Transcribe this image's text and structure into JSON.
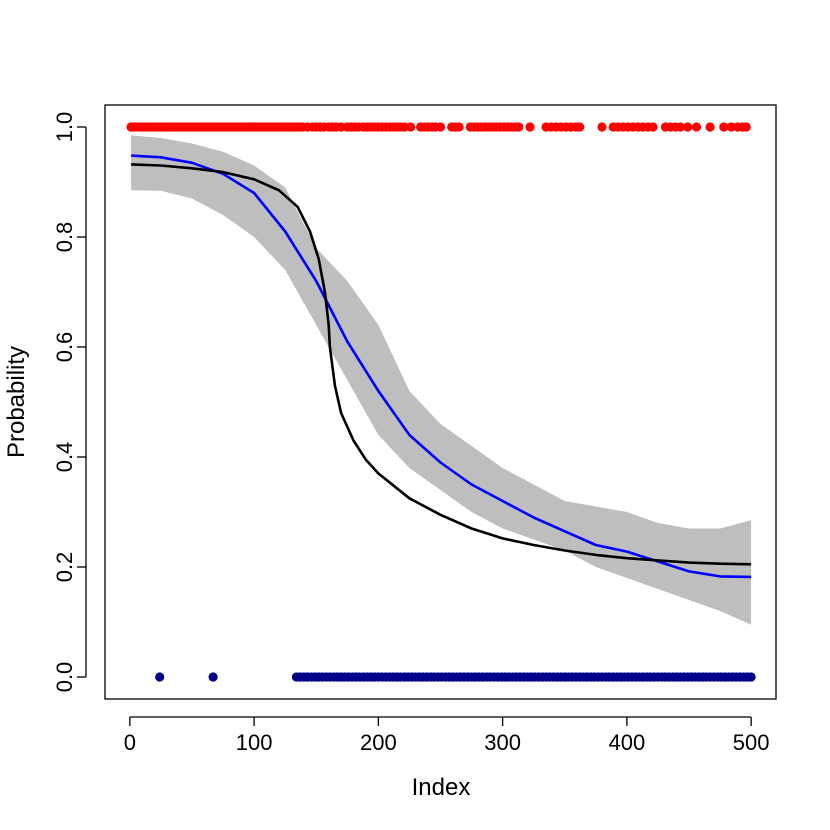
{
  "chart_data": {
    "type": "scatter",
    "title": "",
    "xlabel": "Index",
    "ylabel": "Probability",
    "xlim": [
      -20,
      520
    ],
    "ylim": [
      -0.04,
      1.04
    ],
    "x_ticks": [
      0,
      100,
      200,
      300,
      400,
      500
    ],
    "x_tick_labels": [
      "0",
      "100",
      "200",
      "300",
      "400",
      "500"
    ],
    "y_ticks": [
      0.0,
      0.2,
      0.4,
      0.6,
      0.8,
      1.0
    ],
    "y_tick_labels": [
      "0.0",
      "0.2",
      "0.4",
      "0.6",
      "0.8",
      "1.0"
    ],
    "grid": false,
    "legend": "none",
    "colors": {
      "ones": "#ff0000",
      "zeros": "#00008b",
      "band": "#bebebe",
      "smooth": "#0000ff",
      "logistic": "#000000",
      "axis": "#000000"
    },
    "series": [
      {
        "name": "observed y = 1",
        "kind": "points",
        "color": "#ff0000",
        "y": 1,
        "x": [
          1,
          3,
          5,
          7,
          9,
          11,
          13,
          15,
          17,
          19,
          21,
          23,
          25,
          27,
          29,
          31,
          33,
          35,
          37,
          39,
          41,
          43,
          45,
          47,
          49,
          51,
          53,
          55,
          57,
          59,
          61,
          63,
          65,
          67,
          69,
          71,
          73,
          75,
          77,
          79,
          81,
          83,
          85,
          87,
          89,
          91,
          93,
          95,
          97,
          99,
          101,
          103,
          105,
          107,
          109,
          111,
          113,
          115,
          117,
          119,
          121,
          123,
          125,
          127,
          129,
          131,
          133,
          135,
          137,
          139,
          143,
          147,
          150,
          153,
          156,
          160,
          163,
          166,
          170,
          175,
          178,
          181,
          184,
          188,
          191,
          194,
          197,
          200,
          203,
          206,
          209,
          212,
          215,
          218,
          221,
          226,
          234,
          237,
          240,
          243,
          246,
          250,
          259,
          262,
          265,
          274,
          277,
          280,
          283,
          286,
          289,
          292,
          295,
          298,
          301,
          304,
          307,
          310,
          313,
          322,
          335,
          339,
          343,
          347,
          351,
          355,
          359,
          362,
          380,
          389,
          393,
          397,
          401,
          405,
          409,
          413,
          417,
          421,
          431,
          435,
          439,
          443,
          449,
          456,
          467,
          478,
          484,
          489,
          493,
          496
        ]
      },
      {
        "name": "observed y = 0",
        "kind": "points",
        "color": "#00008b",
        "y": 0,
        "x": [
          24,
          67,
          134,
          137,
          140,
          143,
          146,
          149,
          152,
          155,
          158,
          161,
          164,
          167,
          170,
          173,
          176,
          179,
          182,
          185,
          188,
          191,
          194,
          197,
          200,
          203,
          206,
          209,
          212,
          215,
          218,
          221,
          224,
          227,
          230,
          233,
          236,
          239,
          242,
          245,
          248,
          251,
          254,
          257,
          260,
          263,
          266,
          269,
          272,
          275,
          278,
          281,
          284,
          287,
          290,
          293,
          296,
          299,
          302,
          305,
          308,
          311,
          314,
          317,
          320,
          323,
          326,
          329,
          332,
          335,
          338,
          341,
          344,
          347,
          350,
          353,
          356,
          359,
          362,
          365,
          368,
          371,
          374,
          377,
          380,
          383,
          386,
          389,
          392,
          395,
          398,
          401,
          404,
          407,
          410,
          413,
          416,
          419,
          422,
          425,
          428,
          431,
          434,
          437,
          440,
          443,
          446,
          449,
          452,
          455,
          458,
          461,
          464,
          467,
          470,
          473,
          476,
          479,
          482,
          485,
          488,
          491,
          494,
          497,
          500
        ]
      },
      {
        "name": "confidence band",
        "kind": "band",
        "color": "#bebebe",
        "x": [
          1,
          25,
          50,
          75,
          100,
          125,
          150,
          175,
          200,
          225,
          250,
          275,
          300,
          325,
          350,
          375,
          400,
          425,
          450,
          475,
          500
        ],
        "lower": [
          0.885,
          0.884,
          0.87,
          0.84,
          0.8,
          0.74,
          0.64,
          0.54,
          0.44,
          0.38,
          0.34,
          0.3,
          0.27,
          0.25,
          0.23,
          0.2,
          0.18,
          0.16,
          0.14,
          0.12,
          0.095
        ],
        "upper": [
          0.985,
          0.98,
          0.97,
          0.955,
          0.93,
          0.89,
          0.78,
          0.72,
          0.64,
          0.52,
          0.46,
          0.42,
          0.38,
          0.35,
          0.32,
          0.31,
          0.3,
          0.28,
          0.27,
          0.27,
          0.285
        ]
      },
      {
        "name": "smoothed estimate",
        "kind": "line",
        "color": "#0000ff",
        "x": [
          1,
          25,
          50,
          75,
          100,
          125,
          150,
          175,
          200,
          225,
          250,
          275,
          300,
          325,
          350,
          375,
          400,
          425,
          450,
          475,
          500
        ],
        "y": [
          0.948,
          0.945,
          0.935,
          0.915,
          0.88,
          0.81,
          0.72,
          0.61,
          0.52,
          0.44,
          0.39,
          0.35,
          0.32,
          0.29,
          0.265,
          0.24,
          0.228,
          0.21,
          0.192,
          0.183,
          0.182
        ]
      },
      {
        "name": "logistic fit",
        "kind": "line",
        "color": "#000000",
        "x": [
          1,
          25,
          50,
          75,
          100,
          120,
          135,
          145,
          152,
          157,
          160,
          161,
          165,
          170,
          180,
          190,
          200,
          225,
          250,
          275,
          300,
          325,
          350,
          375,
          400,
          425,
          450,
          475,
          500
        ],
        "y": [
          0.932,
          0.93,
          0.925,
          0.918,
          0.905,
          0.885,
          0.855,
          0.81,
          0.76,
          0.7,
          0.64,
          0.6,
          0.53,
          0.48,
          0.43,
          0.395,
          0.37,
          0.325,
          0.295,
          0.27,
          0.252,
          0.24,
          0.23,
          0.222,
          0.216,
          0.212,
          0.208,
          0.206,
          0.205
        ]
      }
    ]
  }
}
